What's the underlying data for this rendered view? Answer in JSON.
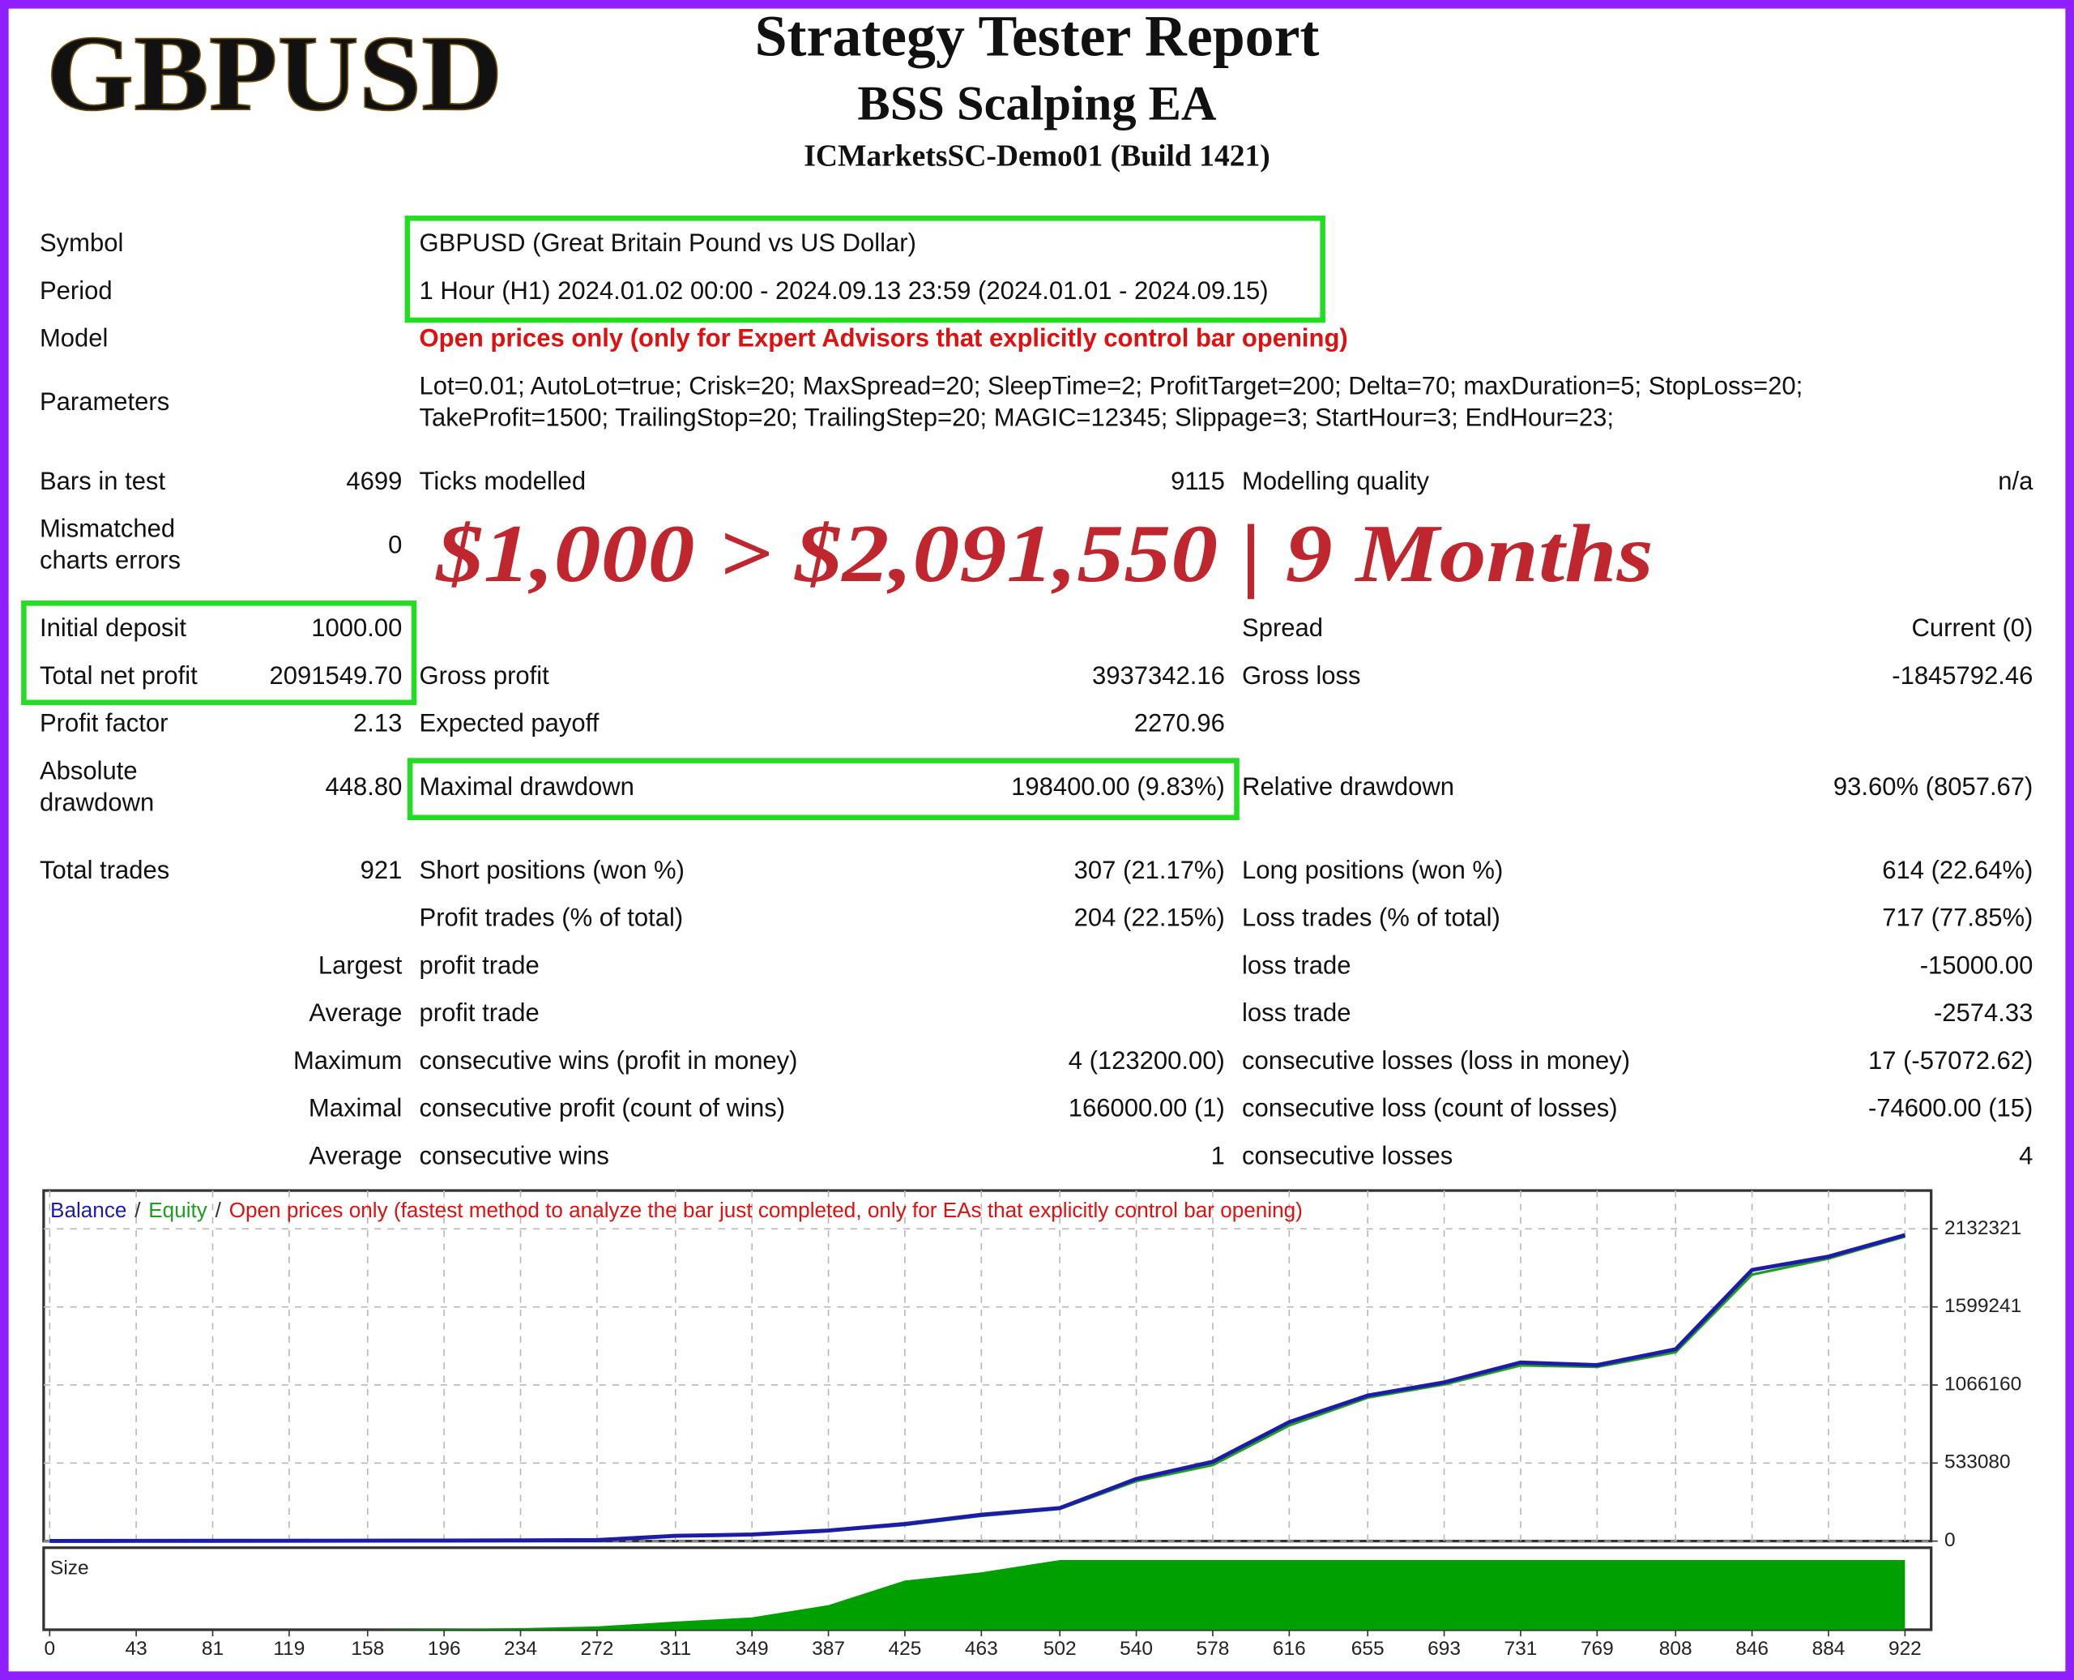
{
  "header": {
    "logo": "GBPUSD",
    "title": "Strategy Tester Report",
    "subtitle": "BSS Scalping EA",
    "server": "ICMarketsSC-Demo01 (Build 1421)"
  },
  "settings": {
    "rows": [
      [
        "Symbol",
        "GBPUSD (Great Britain Pound vs US Dollar)"
      ],
      [
        "Period",
        "1 Hour (H1) 2024.01.02 00:00 - 2024.09.13 23:59 (2024.01.01 - 2024.09.15)"
      ],
      [
        "Model",
        "Open prices only (only for Expert Advisors that explicitly control bar opening)"
      ],
      [
        "Parameters",
        "Lot=0.01; AutoLot=true; Crisk=20; MaxSpread=20; SleepTime=2; ProfitTarget=200; Delta=70; maxDuration=5; StopLoss=20;",
        "TakeProfit=1500; TrailingStop=20; TrailingStep=20; MAGIC=12345; Slippage=3; StartHour=3; EndHour=23;"
      ]
    ]
  },
  "highlight": "$1,000 > $2,091,550 | 9 Months",
  "stats": {
    "rows": [
      [
        "Bars in test",
        "4699",
        "Ticks modelled",
        "9115",
        "Modelling quality",
        "n/a"
      ],
      [
        "Mismatched charts errors",
        "0",
        null,
        null,
        null,
        null
      ],
      [
        "Initial deposit",
        "1000.00",
        null,
        null,
        "Spread",
        "Current (0)"
      ],
      [
        "Total net profit",
        "2091549.70",
        "Gross profit",
        "3937342.16",
        "Gross loss",
        "-1845792.46"
      ],
      [
        "Profit factor",
        "2.13",
        "Expected payoff",
        "2270.96",
        null,
        null
      ],
      [
        "Absolute drawdown",
        "448.80",
        "Maximal drawdown",
        "198400.00 (9.83%)",
        "Relative drawdown",
        "93.60% (8057.67)"
      ],
      [
        "Total trades",
        "921",
        "Short positions (won %)",
        "307 (21.17%)",
        "Long positions (won %)",
        "614 (22.64%)"
      ],
      [
        null,
        null,
        "Profit trades (% of total)",
        "204 (22.15%)",
        "Loss trades (% of total)",
        "717 (77.85%)"
      ],
      [
        null,
        "Largest",
        "profit trade",
        null,
        "loss trade",
        "-15000.00"
      ],
      [
        null,
        "Average",
        "profit trade",
        null,
        "loss trade",
        "-2574.33"
      ],
      [
        null,
        "Maximum",
        "consecutive wins (profit in money)",
        "4 (123200.00)",
        "consecutive losses (loss in money)",
        "17 (-57072.62)"
      ],
      [
        null,
        "Maximal",
        "consecutive profit (count of wins)",
        "166000.00 (1)",
        "consecutive loss (count of losses)",
        "-74600.00 (15)"
      ],
      [
        null,
        "Average",
        "consecutive wins",
        "1",
        "consecutive losses",
        "4"
      ]
    ]
  },
  "chart_data": {
    "type": "line",
    "legend_separator": "/",
    "note": "Open prices only (fastest method to analyze the bar just completed, only for EAs that explicitly control bar opening)",
    "note_color": "#e01010",
    "x": [
      0,
      43,
      81,
      119,
      158,
      196,
      234,
      272,
      311,
      349,
      387,
      425,
      463,
      502,
      540,
      578,
      616,
      655,
      693,
      731,
      769,
      808,
      846,
      884,
      922
    ],
    "series": [
      {
        "name": "Balance",
        "color": "#1c1ca8",
        "values": [
          1000,
          1500,
          2000,
          2500,
          3000,
          4000,
          5000,
          7000,
          36000,
          45000,
          72000,
          117000,
          180000,
          226000,
          425000,
          542000,
          813000,
          994000,
          1084000,
          1220000,
          1202000,
          1310000,
          1852000,
          1943000,
          2090000
        ]
      },
      {
        "name": "Equity",
        "color": "#1ea01e",
        "values": [
          1000,
          1500,
          2000,
          2500,
          3000,
          4000,
          5000,
          7000,
          35000,
          44000,
          70000,
          110000,
          172000,
          220000,
          410000,
          520000,
          790000,
          980000,
          1070000,
          1200000,
          1190000,
          1290000,
          1820000,
          1930000,
          2080000
        ]
      }
    ],
    "xlim": [
      -3,
      935
    ],
    "xticks": [
      0,
      43,
      81,
      119,
      158,
      196,
      234,
      272,
      311,
      349,
      387,
      425,
      463,
      502,
      540,
      578,
      616,
      655,
      693,
      731,
      769,
      808,
      846,
      884,
      922
    ],
    "ylim": [
      0,
      2394000
    ],
    "yticks": [
      0,
      533080,
      1066160,
      1599241,
      2132321
    ],
    "grid": true,
    "size": {
      "label": "Size",
      "color": "#00a000",
      "ylim": [
        0,
        1
      ],
      "values": [
        0,
        0,
        0,
        0,
        0,
        0.01,
        0.02,
        0.04,
        0.1,
        0.15,
        0.3,
        0.6,
        0.7,
        0.85,
        0.85,
        0.85,
        0.85,
        0.85,
        0.85,
        0.85,
        0.85,
        0.85,
        0.85,
        0.85,
        0.85
      ]
    }
  }
}
